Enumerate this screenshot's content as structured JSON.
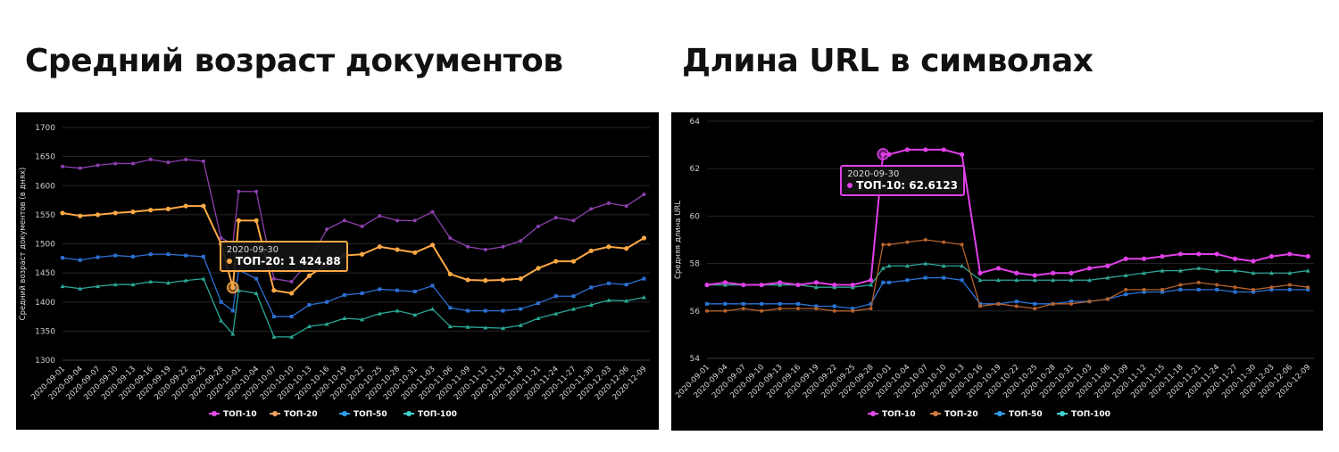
{
  "slide": {
    "left_title": "Средний возраст документов",
    "right_title": "Длина URL в символах"
  },
  "chart_data": [
    {
      "type": "line",
      "ylabel": "Средний возраст документов (в днях)",
      "xlabel": "",
      "ylim": [
        1300,
        1700
      ],
      "yticks": [
        1300,
        1350,
        1400,
        1450,
        1500,
        1550,
        1600,
        1650,
        1700
      ],
      "grid": true,
      "legend_position": "bottom",
      "xticks": [
        "2020-09-01",
        "2020-09-04",
        "2020-09-07",
        "2020-09-10",
        "2020-09-13",
        "2020-09-16",
        "2020-09-19",
        "2020-09-22",
        "2020-09-25",
        "2020-09-28",
        "2020-10-01",
        "2020-10-04",
        "2020-10-07",
        "2020-10-10",
        "2020-10-13",
        "2020-10-16",
        "2020-10-19",
        "2020-10-22",
        "2020-10-25",
        "2020-10-28",
        "2020-10-31",
        "2020-11-03",
        "2020-11-06",
        "2020-11-09",
        "2020-11-12",
        "2020-11-15",
        "2020-11-18",
        "2020-11-21",
        "2020-11-24",
        "2020-11-27",
        "2020-11-30",
        "2020-12-03",
        "2020-12-06",
        "2020-12-09"
      ],
      "x": [
        "2020-09-01",
        "2020-09-04",
        "2020-09-07",
        "2020-09-10",
        "2020-09-13",
        "2020-09-16",
        "2020-09-19",
        "2020-09-22",
        "2020-09-25",
        "2020-09-28",
        "2020-09-30",
        "2020-10-01",
        "2020-10-04",
        "2020-10-07",
        "2020-10-10",
        "2020-10-13",
        "2020-10-16",
        "2020-10-19",
        "2020-10-22",
        "2020-10-25",
        "2020-10-28",
        "2020-10-31",
        "2020-11-03",
        "2020-11-06",
        "2020-11-09",
        "2020-11-12",
        "2020-11-15",
        "2020-11-18",
        "2020-11-21",
        "2020-11-24",
        "2020-11-27",
        "2020-11-30",
        "2020-12-03",
        "2020-12-06",
        "2020-12-09"
      ],
      "series": [
        {
          "name": "ТОП-10",
          "color": "#8e3fae",
          "legend_color": "#e24be6",
          "marker": "circle",
          "values": [
            1633,
            1630,
            1635,
            1638,
            1638,
            1645,
            1640,
            1645,
            1642,
            1510,
            1500,
            1590,
            1590,
            1440,
            1435,
            1470,
            1525,
            1540,
            1530,
            1548,
            1540,
            1540,
            1555,
            1510,
            1495,
            1490,
            1495,
            1505,
            1530,
            1545,
            1540,
            1560,
            1570,
            1565,
            1585
          ]
        },
        {
          "name": "ТОП-20",
          "color": "#ffa945",
          "legend_color": "#f0a060",
          "marker": "circle",
          "values": [
            1553,
            1548,
            1550,
            1553,
            1555,
            1558,
            1560,
            1565,
            1565,
            1500,
            1424.88,
            1540,
            1540,
            1420,
            1415,
            1445,
            1465,
            1480,
            1482,
            1495,
            1490,
            1485,
            1498,
            1448,
            1438,
            1437,
            1438,
            1440,
            1458,
            1470,
            1470,
            1488,
            1495,
            1492,
            1510
          ]
        },
        {
          "name": "ТОП-50",
          "color": "#2d6fd2",
          "legend_color": "#2f9ff0",
          "marker": "square",
          "values": [
            1476,
            1472,
            1477,
            1480,
            1478,
            1482,
            1482,
            1480,
            1478,
            1400,
            1385,
            1455,
            1440,
            1375,
            1375,
            1395,
            1400,
            1412,
            1415,
            1422,
            1420,
            1418,
            1428,
            1390,
            1385,
            1385,
            1385,
            1388,
            1398,
            1410,
            1410,
            1425,
            1432,
            1430,
            1440
          ]
        },
        {
          "name": "ТОП-100",
          "color": "#2aa797",
          "legend_color": "#40d0d0",
          "marker": "triangle",
          "values": [
            1427,
            1423,
            1427,
            1430,
            1430,
            1435,
            1433,
            1437,
            1440,
            1368,
            1345,
            1420,
            1415,
            1340,
            1340,
            1358,
            1362,
            1372,
            1370,
            1380,
            1385,
            1378,
            1388,
            1358,
            1357,
            1356,
            1355,
            1360,
            1372,
            1380,
            1388,
            1395,
            1403,
            1402,
            1408
          ]
        }
      ],
      "tooltip": {
        "date": "2020-09-30",
        "series": "ТОП-20",
        "label": "ТОП-20: ",
        "value": "1 424.88",
        "color": "#ffa945"
      }
    },
    {
      "type": "line",
      "ylabel": "Средняя длина URL",
      "xlabel": "",
      "ylim": [
        54,
        64
      ],
      "yticks": [
        54,
        56,
        58,
        60,
        62,
        64
      ],
      "grid": true,
      "legend_position": "bottom",
      "xticks": [
        "2020-09-01",
        "2020-09-04",
        "2020-09-07",
        "2020-09-10",
        "2020-09-13",
        "2020-09-16",
        "2020-09-19",
        "2020-09-22",
        "2020-09-25",
        "2020-09-28",
        "2020-10-01",
        "2020-10-04",
        "2020-10-07",
        "2020-10-10",
        "2020-10-13",
        "2020-10-16",
        "2020-10-19",
        "2020-10-22",
        "2020-10-25",
        "2020-10-28",
        "2020-10-31",
        "2020-11-03",
        "2020-11-06",
        "2020-11-09",
        "2020-11-12",
        "2020-11-15",
        "2020-11-18",
        "2020-11-21",
        "2020-11-24",
        "2020-11-27",
        "2020-11-30",
        "2020-12-03",
        "2020-12-06",
        "2020-12-09"
      ],
      "x": [
        "2020-09-01",
        "2020-09-04",
        "2020-09-07",
        "2020-09-10",
        "2020-09-13",
        "2020-09-16",
        "2020-09-19",
        "2020-09-22",
        "2020-09-25",
        "2020-09-28",
        "2020-09-30",
        "2020-10-01",
        "2020-10-04",
        "2020-10-07",
        "2020-10-10",
        "2020-10-13",
        "2020-10-16",
        "2020-10-19",
        "2020-10-22",
        "2020-10-25",
        "2020-10-28",
        "2020-10-31",
        "2020-11-03",
        "2020-11-06",
        "2020-11-09",
        "2020-11-12",
        "2020-11-15",
        "2020-11-18",
        "2020-11-21",
        "2020-11-24",
        "2020-11-27",
        "2020-11-30",
        "2020-12-03",
        "2020-12-06",
        "2020-12-09"
      ],
      "series": [
        {
          "name": "ТОП-10",
          "color": "#e040e8",
          "legend_color": "#e24be6",
          "marker": "circle",
          "values": [
            57.1,
            57.2,
            57.1,
            57.1,
            57.2,
            57.1,
            57.2,
            57.1,
            57.1,
            57.3,
            62.6123,
            62.6,
            62.8,
            62.8,
            62.8,
            62.6,
            57.6,
            57.8,
            57.6,
            57.5,
            57.6,
            57.6,
            57.8,
            57.9,
            58.2,
            58.2,
            58.3,
            58.4,
            58.4,
            58.4,
            58.2,
            58.1,
            58.3,
            58.4,
            58.3
          ]
        },
        {
          "name": "ТОП-20",
          "color": "#b5612c",
          "legend_color": "#d07a40",
          "marker": "circle",
          "values": [
            56.0,
            56.0,
            56.1,
            56.0,
            56.1,
            56.1,
            56.1,
            56.0,
            56.0,
            56.1,
            58.8,
            58.8,
            58.9,
            59.0,
            58.9,
            58.8,
            56.2,
            56.3,
            56.2,
            56.1,
            56.3,
            56.3,
            56.4,
            56.5,
            56.9,
            56.9,
            56.9,
            57.1,
            57.2,
            57.1,
            57.0,
            56.9,
            57.0,
            57.1,
            57.0
          ]
        },
        {
          "name": "ТОП-50",
          "color": "#2a74d4",
          "legend_color": "#2f9ff0",
          "marker": "square",
          "values": [
            56.3,
            56.3,
            56.3,
            56.3,
            56.3,
            56.3,
            56.2,
            56.2,
            56.1,
            56.3,
            57.2,
            57.2,
            57.3,
            57.4,
            57.4,
            57.3,
            56.3,
            56.3,
            56.4,
            56.3,
            56.3,
            56.4,
            56.4,
            56.5,
            56.7,
            56.8,
            56.8,
            56.9,
            56.9,
            56.9,
            56.8,
            56.8,
            56.9,
            56.9,
            56.9
          ]
        },
        {
          "name": "ТОП-100",
          "color": "#2fa596",
          "legend_color": "#40d0d0",
          "marker": "triangle",
          "values": [
            57.1,
            57.1,
            57.1,
            57.1,
            57.1,
            57.1,
            57.0,
            57.0,
            57.0,
            57.1,
            57.8,
            57.9,
            57.9,
            58.0,
            57.9,
            57.9,
            57.3,
            57.3,
            57.3,
            57.3,
            57.3,
            57.3,
            57.3,
            57.4,
            57.5,
            57.6,
            57.7,
            57.7,
            57.8,
            57.7,
            57.7,
            57.6,
            57.6,
            57.6,
            57.7
          ]
        }
      ],
      "tooltip": {
        "date": "2020-09-30",
        "series": "ТОП-10",
        "label": "ТОП-10: ",
        "value": "62.6123",
        "color": "#e040e8"
      }
    }
  ]
}
